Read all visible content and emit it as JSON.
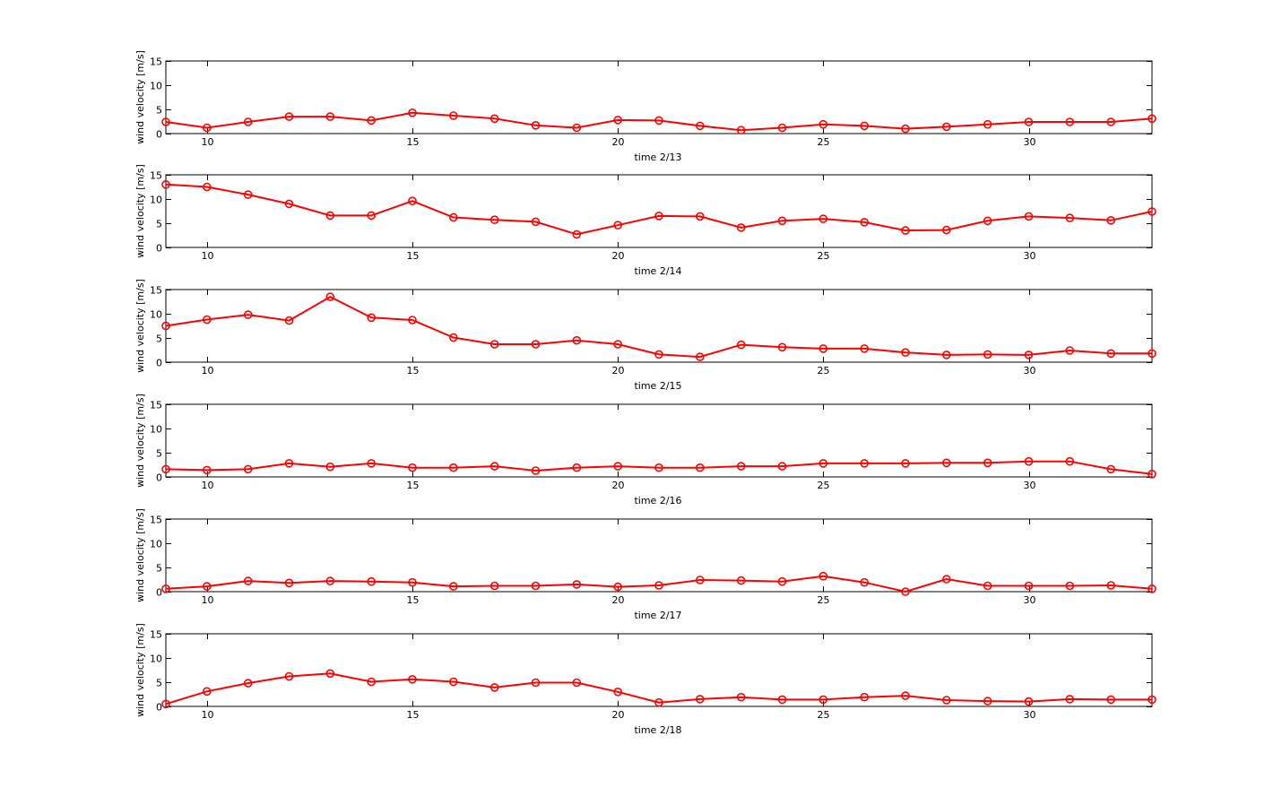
{
  "figure": {
    "background": "#ffffff",
    "line_color": "#ff0000",
    "axis_color": "#000000"
  },
  "chart_data": [
    {
      "type": "line",
      "xlabel": "time  2/13",
      "ylabel": "wind velocity [m/s]",
      "xlim": [
        9,
        33
      ],
      "ylim": [
        0,
        15
      ],
      "xticks": [
        10,
        15,
        20,
        25,
        30
      ],
      "yticks": [
        0,
        5,
        10,
        15
      ],
      "grid": false,
      "series": [
        {
          "color": "#ff0000",
          "marker": "circle",
          "x": [
            9,
            10,
            11,
            12,
            13,
            14,
            15,
            16,
            17,
            18,
            19,
            20,
            21,
            22,
            23,
            24,
            25,
            26,
            27,
            28,
            29,
            30,
            31,
            32,
            33
          ],
          "y": [
            2.4,
            1.2,
            2.4,
            3.5,
            3.5,
            2.7,
            4.3,
            3.7,
            3.1,
            1.7,
            1.2,
            2.8,
            2.7,
            1.6,
            0.7,
            1.2,
            1.9,
            1.6,
            1.0,
            1.4,
            1.9,
            2.4,
            2.4,
            2.4,
            3.1
          ]
        }
      ]
    },
    {
      "type": "line",
      "xlabel": "time  2/14",
      "ylabel": "wind velocity [m/s]",
      "xlim": [
        9,
        33
      ],
      "ylim": [
        0,
        15
      ],
      "xticks": [
        10,
        15,
        20,
        25,
        30
      ],
      "yticks": [
        0,
        5,
        10,
        15
      ],
      "grid": false,
      "series": [
        {
          "color": "#ff0000",
          "marker": "circle",
          "x": [
            9,
            10,
            11,
            12,
            13,
            14,
            15,
            16,
            17,
            18,
            19,
            20,
            21,
            22,
            23,
            24,
            25,
            26,
            27,
            28,
            29,
            30,
            31,
            32,
            33
          ],
          "y": [
            13.0,
            12.5,
            10.9,
            9.0,
            6.6,
            6.6,
            9.6,
            6.2,
            5.7,
            5.3,
            2.7,
            4.6,
            6.5,
            6.4,
            4.1,
            5.5,
            5.9,
            5.2,
            3.5,
            3.6,
            5.5,
            6.4,
            6.1,
            5.6,
            7.4
          ]
        }
      ]
    },
    {
      "type": "line",
      "xlabel": "time  2/15",
      "ylabel": "wind velocity [m/s]",
      "xlim": [
        9,
        33
      ],
      "ylim": [
        0,
        15
      ],
      "xticks": [
        10,
        15,
        20,
        25,
        30
      ],
      "yticks": [
        0,
        5,
        10,
        15
      ],
      "grid": false,
      "series": [
        {
          "color": "#ff0000",
          "marker": "circle",
          "x": [
            9,
            10,
            11,
            12,
            13,
            14,
            15,
            16,
            17,
            18,
            19,
            20,
            21,
            22,
            23,
            24,
            25,
            26,
            27,
            28,
            29,
            30,
            31,
            32,
            33
          ],
          "y": [
            7.5,
            8.8,
            9.8,
            8.6,
            13.5,
            9.2,
            8.7,
            5.1,
            3.7,
            3.7,
            4.5,
            3.7,
            1.6,
            1.1,
            3.6,
            3.1,
            2.8,
            2.8,
            2.0,
            1.5,
            1.6,
            1.5,
            2.4,
            1.8,
            1.8
          ]
        }
      ]
    },
    {
      "type": "line",
      "xlabel": "time 2/16",
      "ylabel": "wind velocity [m/s]",
      "xlim": [
        9,
        33
      ],
      "ylim": [
        0,
        15
      ],
      "xticks": [
        10,
        15,
        20,
        25,
        30
      ],
      "yticks": [
        0,
        5,
        10,
        15
      ],
      "grid": false,
      "series": [
        {
          "color": "#ff0000",
          "marker": "circle",
          "x": [
            9,
            10,
            11,
            12,
            13,
            14,
            15,
            16,
            17,
            18,
            19,
            20,
            21,
            22,
            23,
            24,
            25,
            26,
            27,
            28,
            29,
            30,
            31,
            32,
            33
          ],
          "y": [
            1.6,
            1.4,
            1.6,
            2.8,
            2.1,
            2.8,
            1.9,
            1.9,
            2.2,
            1.3,
            1.9,
            2.2,
            1.9,
            1.9,
            2.2,
            2.2,
            2.8,
            2.8,
            2.8,
            2.9,
            2.9,
            3.2,
            3.2,
            1.6,
            0.6
          ]
        }
      ]
    },
    {
      "type": "line",
      "xlabel": "time 2/17",
      "ylabel": "wind velocity [m/s]",
      "xlim": [
        9,
        33
      ],
      "ylim": [
        0,
        15
      ],
      "xticks": [
        10,
        15,
        20,
        25,
        30
      ],
      "yticks": [
        0,
        5,
        10,
        15
      ],
      "grid": false,
      "series": [
        {
          "color": "#ff0000",
          "marker": "circle",
          "x": [
            9,
            10,
            11,
            12,
            13,
            14,
            15,
            16,
            17,
            18,
            19,
            20,
            21,
            22,
            23,
            24,
            25,
            26,
            27,
            28,
            29,
            30,
            31,
            32,
            33
          ],
          "y": [
            0.6,
            1.1,
            2.2,
            1.8,
            2.2,
            2.1,
            1.9,
            1.1,
            1.2,
            1.2,
            1.5,
            1.0,
            1.3,
            2.4,
            2.3,
            2.1,
            3.2,
            1.9,
            0.0,
            2.6,
            1.2,
            1.2,
            1.2,
            1.3,
            0.6
          ]
        }
      ]
    },
    {
      "type": "line",
      "xlabel": "time  2/18",
      "ylabel": "wind velocity [m/s]",
      "xlim": [
        9,
        33
      ],
      "ylim": [
        0,
        15
      ],
      "xticks": [
        10,
        15,
        20,
        25,
        30
      ],
      "yticks": [
        0,
        5,
        10,
        15
      ],
      "grid": false,
      "series": [
        {
          "color": "#ff0000",
          "marker": "circle",
          "x": [
            9,
            10,
            11,
            12,
            13,
            14,
            15,
            16,
            17,
            18,
            19,
            20,
            21,
            22,
            23,
            24,
            25,
            26,
            27,
            28,
            29,
            30,
            31,
            32,
            33
          ],
          "y": [
            0.5,
            3.1,
            4.8,
            6.2,
            6.8,
            5.1,
            5.6,
            5.1,
            3.9,
            4.9,
            4.9,
            3.0,
            0.8,
            1.5,
            1.9,
            1.4,
            1.4,
            1.9,
            2.2,
            1.3,
            1.1,
            1.0,
            1.5,
            1.4,
            1.4
          ]
        }
      ]
    }
  ]
}
